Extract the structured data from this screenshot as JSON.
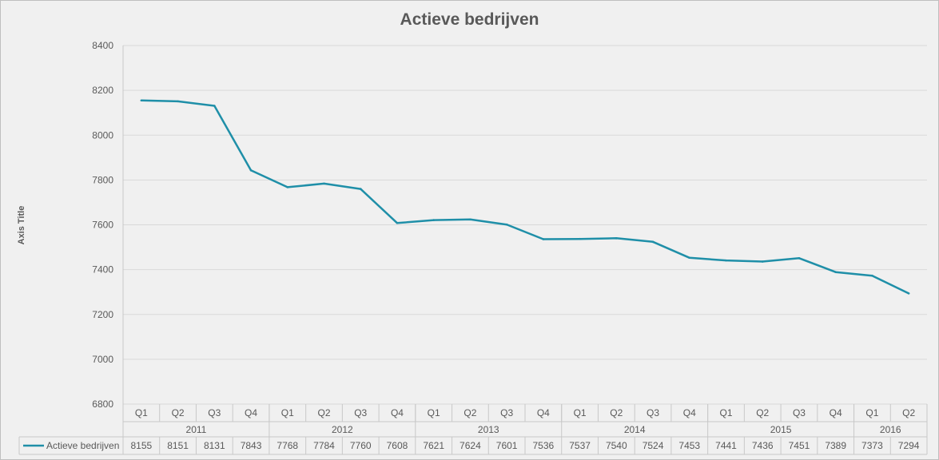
{
  "chart_data": {
    "type": "line",
    "title": "Actieve bedrijven",
    "xlabel": "",
    "ylabel": "Axis Title",
    "ylim": [
      6800,
      8400
    ],
    "yticks": [
      6800,
      7000,
      7200,
      7400,
      7600,
      7800,
      8000,
      8200,
      8400
    ],
    "years": [
      "2011",
      "2012",
      "2013",
      "2014",
      "2015",
      "2016"
    ],
    "categories": [
      {
        "year": "2011",
        "quarter": "Q1"
      },
      {
        "year": "2011",
        "quarter": "Q2"
      },
      {
        "year": "2011",
        "quarter": "Q3"
      },
      {
        "year": "2011",
        "quarter": "Q4"
      },
      {
        "year": "2012",
        "quarter": "Q1"
      },
      {
        "year": "2012",
        "quarter": "Q2"
      },
      {
        "year": "2012",
        "quarter": "Q3"
      },
      {
        "year": "2012",
        "quarter": "Q4"
      },
      {
        "year": "2013",
        "quarter": "Q1"
      },
      {
        "year": "2013",
        "quarter": "Q2"
      },
      {
        "year": "2013",
        "quarter": "Q3"
      },
      {
        "year": "2013",
        "quarter": "Q4"
      },
      {
        "year": "2014",
        "quarter": "Q1"
      },
      {
        "year": "2014",
        "quarter": "Q2"
      },
      {
        "year": "2014",
        "quarter": "Q3"
      },
      {
        "year": "2014",
        "quarter": "Q4"
      },
      {
        "year": "2015",
        "quarter": "Q1"
      },
      {
        "year": "2015",
        "quarter": "Q2"
      },
      {
        "year": "2015",
        "quarter": "Q3"
      },
      {
        "year": "2015",
        "quarter": "Q4"
      },
      {
        "year": "2016",
        "quarter": "Q1"
      },
      {
        "year": "2016",
        "quarter": "Q2"
      }
    ],
    "series": [
      {
        "name": "Actieve bedrijven",
        "color": "#1f8fa8",
        "values": [
          8155,
          8151,
          8131,
          7843,
          7768,
          7784,
          7760,
          7608,
          7621,
          7624,
          7601,
          7536,
          7537,
          7540,
          7524,
          7453,
          7441,
          7436,
          7451,
          7389,
          7373,
          7294
        ]
      }
    ],
    "grid": true,
    "data_table": true,
    "legend_position": "data-table-left"
  }
}
